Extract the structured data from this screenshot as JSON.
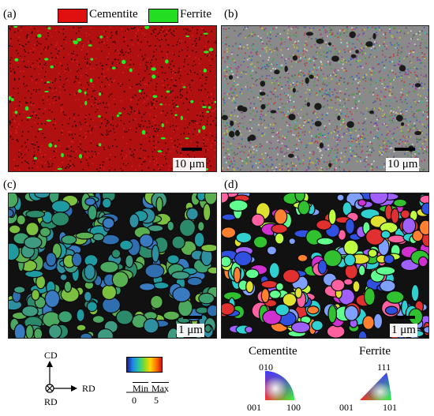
{
  "panels": {
    "a": {
      "label": "(a)",
      "scale": "10 μm"
    },
    "b": {
      "label": "(b)",
      "scale": "10 μm"
    },
    "c": {
      "label": "(c)",
      "scale": "1 μm"
    },
    "d": {
      "label": "(d)",
      "scale": "1 μm"
    }
  },
  "legend": {
    "cementite": {
      "label": "Cementite",
      "color": "#e01010"
    },
    "ferrite": {
      "label": "Ferrite",
      "color": "#22dd22"
    }
  },
  "axes": {
    "cd": "CD",
    "rd_right": "RD",
    "rd_bottom": "RD"
  },
  "kam": {
    "min": "Min",
    "max": "Max",
    "min_val": "0",
    "max_val": "5"
  },
  "ipf": {
    "cementite": {
      "title": "Cementite",
      "top": "010",
      "left": "001",
      "right": "100"
    },
    "ferrite": {
      "title": "Ferrite",
      "top": "111",
      "left": "001",
      "right": "101"
    }
  }
}
